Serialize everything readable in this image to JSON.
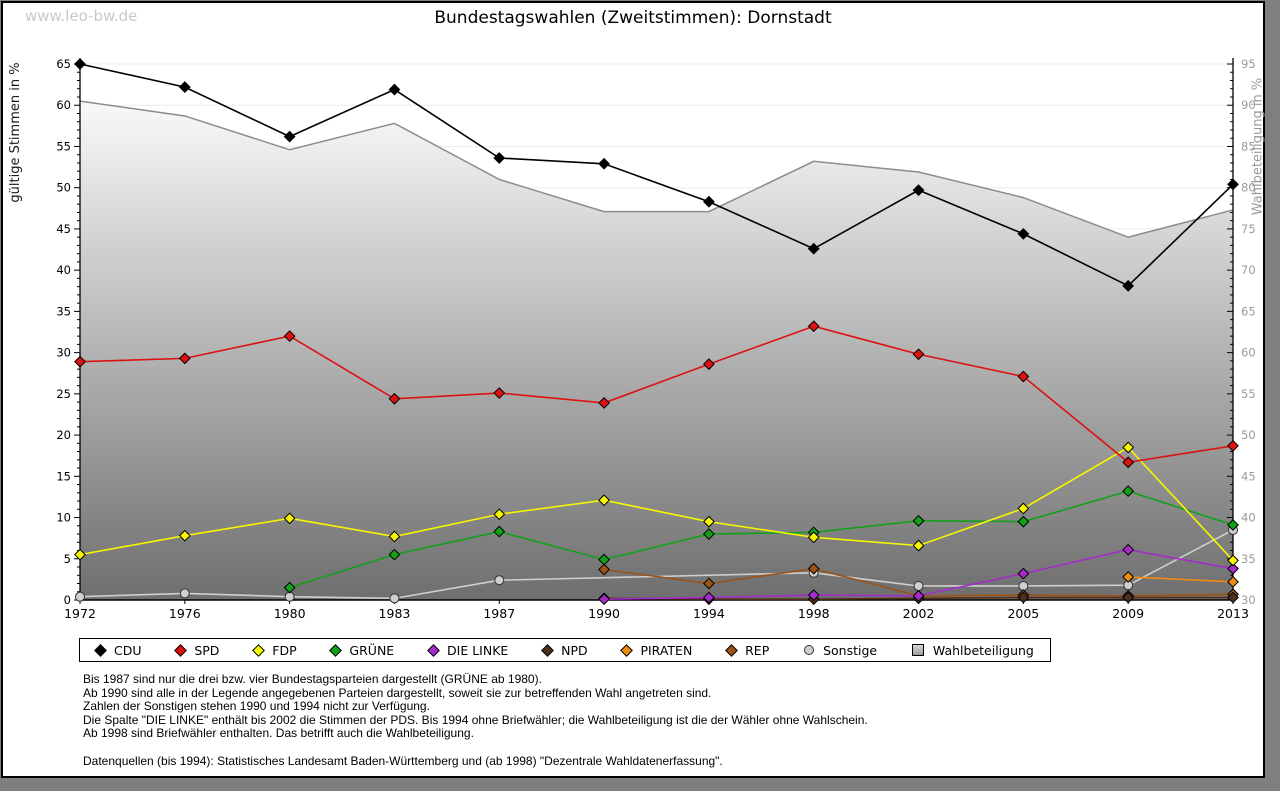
{
  "page": {
    "watermark": "www.leo-bw.de",
    "title": "Bundestagswahlen (Zweitstimmen): Dornstadt"
  },
  "chart_data": {
    "type": "line",
    "title": "Bundestagswahlen (Zweitstimmen): Dornstadt",
    "x_categories": [
      "1972",
      "1976",
      "1980",
      "1983",
      "1987",
      "1990",
      "1994",
      "1998",
      "2002",
      "2005",
      "2009",
      "2013"
    ],
    "left_axis": {
      "label": "gültige Stimmen in %",
      "min": 0,
      "max": 65,
      "tick_step": 5
    },
    "right_axis": {
      "label": "Wahlbeteiligung in %",
      "min": 30,
      "max": 95,
      "tick_step": 5
    },
    "grid": true,
    "legend_position": "bottom",
    "series": [
      {
        "name": "CDU",
        "color": "#000000",
        "marker": "diamond",
        "axis": "left",
        "values": [
          65.0,
          62.2,
          56.2,
          61.9,
          53.6,
          52.9,
          48.3,
          42.6,
          49.7,
          44.4,
          38.1,
          50.4
        ]
      },
      {
        "name": "SPD",
        "color": "#dd1111",
        "marker": "diamond",
        "axis": "left",
        "values": [
          28.9,
          29.3,
          32.0,
          24.4,
          25.1,
          23.9,
          28.6,
          33.2,
          29.8,
          27.1,
          16.7,
          18.7
        ]
      },
      {
        "name": "FDP",
        "color": "#f6f600",
        "marker": "diamond",
        "axis": "left",
        "values": [
          5.5,
          7.8,
          9.9,
          7.7,
          10.4,
          12.1,
          9.5,
          7.6,
          6.6,
          11.1,
          18.5,
          4.8
        ]
      },
      {
        "name": "GRÜNE",
        "color": "#12a018",
        "marker": "diamond",
        "axis": "left",
        "values": [
          null,
          null,
          1.5,
          5.5,
          8.3,
          4.9,
          8.0,
          8.2,
          9.6,
          9.5,
          13.2,
          9.1
        ]
      },
      {
        "name": "DIE LINKE",
        "color": "#a42cc8",
        "marker": "diamond",
        "axis": "left",
        "values": [
          null,
          null,
          null,
          null,
          null,
          0.1,
          0.3,
          0.6,
          0.5,
          3.2,
          6.1,
          3.8
        ]
      },
      {
        "name": "NPD",
        "color": "#50301b",
        "marker": "diamond",
        "axis": "left",
        "values": [
          null,
          null,
          null,
          null,
          null,
          0.2,
          0.1,
          0.1,
          0.2,
          0.3,
          0.3,
          0.3
        ]
      },
      {
        "name": "PIRATEN",
        "color": "#ef8c10",
        "marker": "diamond",
        "axis": "left",
        "values": [
          null,
          null,
          null,
          null,
          null,
          null,
          null,
          null,
          null,
          null,
          2.8,
          2.2
        ]
      },
      {
        "name": "REP",
        "color": "#9b5317",
        "marker": "diamond",
        "axis": "left",
        "values": [
          null,
          null,
          null,
          null,
          null,
          3.7,
          2.0,
          3.8,
          0.5,
          0.6,
          0.5,
          0.7
        ]
      },
      {
        "name": "Sonstige",
        "color": "#cfcfcf",
        "marker": "circle",
        "axis": "left",
        "values": [
          0.4,
          0.8,
          0.4,
          0.2,
          2.4,
          null,
          null,
          3.3,
          1.7,
          1.7,
          1.8,
          8.5
        ]
      },
      {
        "name": "Wahlbeteiligung",
        "color": "#8c8c8c",
        "marker": "square",
        "axis": "right",
        "area": true,
        "area_gradient": [
          "#fdfdfd",
          "#6e6e6e"
        ],
        "values": [
          90.5,
          88.7,
          84.6,
          87.8,
          81.0,
          77.1,
          77.1,
          83.2,
          81.9,
          78.8,
          74.0,
          77.3
        ]
      }
    ]
  },
  "footnotes": [
    "Bis 1987 sind nur die drei bzw. vier Bundestagsparteien dargestellt (GRÜNE ab 1980).",
    "Ab 1990 sind alle in der Legende angegebenen Parteien dargestellt, soweit sie zur betreffenden Wahl angetreten sind.",
    "Zahlen der Sonstigen stehen 1990 und 1994 nicht zur Verfügung.",
    "Die Spalte \"DIE LINKE\" enthält bis 2002 die Stimmen der PDS. Bis 1994 ohne Briefwähler; die Wahlbeteiligung ist die der Wähler ohne Wahlschein.",
    "Ab 1998 sind Briefwähler enthalten. Das betrifft auch die Wahlbeteiligung."
  ],
  "source": "Datenquellen (bis 1994): Statistisches Landesamt Baden-Württemberg und (ab 1998) \"Dezentrale Wahldatenerfassung\"."
}
